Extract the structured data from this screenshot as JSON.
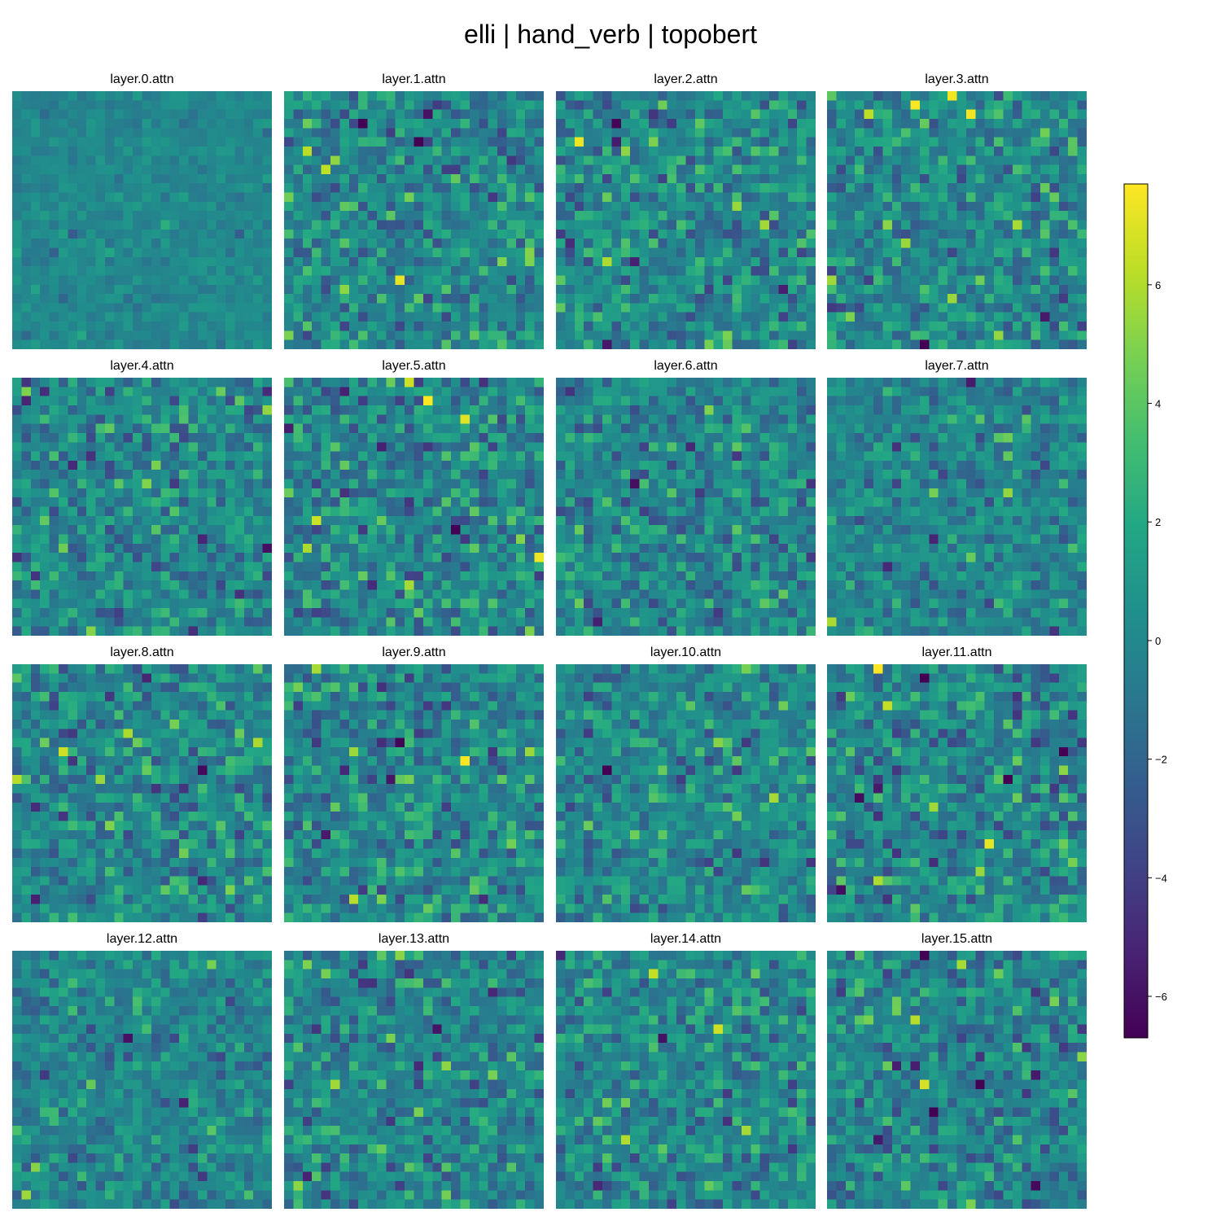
{
  "title": "elli | hand_verb | topobert",
  "chart_data": {
    "type": "heatmap",
    "title": "elli | hand_verb | topobert",
    "grid_cells": 28,
    "colormap": "viridis",
    "colors": {
      "min": "#440154",
      "mid": "#21918c",
      "max": "#fde725"
    },
    "value_range": [
      -6.7,
      7.7
    ],
    "colorbar_ticks": [
      -6,
      -4,
      -2,
      0,
      2,
      4,
      6
    ],
    "panels": [
      {
        "label": "layer.0.attn",
        "contrast": 0.35
      },
      {
        "label": "layer.1.attn",
        "contrast": 1.0
      },
      {
        "label": "layer.2.attn",
        "contrast": 1.0
      },
      {
        "label": "layer.3.attn",
        "contrast": 1.0
      },
      {
        "label": "layer.4.attn",
        "contrast": 1.0
      },
      {
        "label": "layer.5.attn",
        "contrast": 1.1
      },
      {
        "label": "layer.6.attn",
        "contrast": 1.0
      },
      {
        "label": "layer.7.attn",
        "contrast": 0.8
      },
      {
        "label": "layer.8.attn",
        "contrast": 1.0
      },
      {
        "label": "layer.9.attn",
        "contrast": 1.0
      },
      {
        "label": "layer.10.attn",
        "contrast": 0.95
      },
      {
        "label": "layer.11.attn",
        "contrast": 1.1
      },
      {
        "label": "layer.12.attn",
        "contrast": 0.8
      },
      {
        "label": "layer.13.attn",
        "contrast": 1.0
      },
      {
        "label": "layer.14.attn",
        "contrast": 1.0
      },
      {
        "label": "layer.15.attn",
        "contrast": 1.0
      }
    ]
  }
}
